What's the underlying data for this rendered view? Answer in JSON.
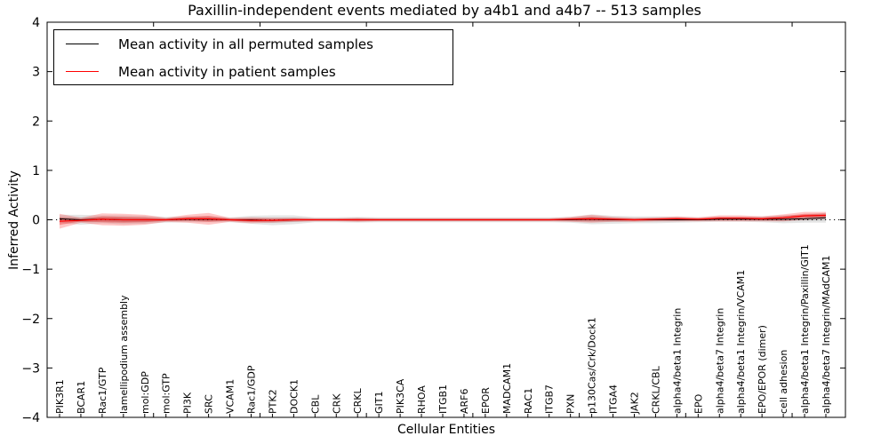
{
  "title": "Paxillin-independent events mediated by a4b1 and a4b7 -- 513 samples",
  "axes": {
    "xlabel": "Cellular Entities",
    "ylabel": "Inferred Activity",
    "ytick_labels": [
      "4",
      "3",
      "2",
      "1",
      "0",
      "−1",
      "−2",
      "−3",
      "−4"
    ],
    "ytick_values": [
      4,
      3,
      2,
      1,
      0,
      -1,
      -2,
      -3,
      -4
    ]
  },
  "legend": {
    "entries": [
      {
        "label": "Mean activity in all permuted samples",
        "color": "#000000"
      },
      {
        "label": "Mean activity in patient samples",
        "color": "#ff0000"
      }
    ]
  },
  "colors": {
    "permuted_line": "#000000",
    "patient_line": "#ff0000",
    "permuted_band": "rgba(0,0,0,0.10)",
    "permuted_band_inner": "rgba(0,0,0,0.13)",
    "patient_band": "rgba(255,0,0,0.22)",
    "patient_band_inner": "rgba(230,0,0,0.30)",
    "zero_line": "#000000",
    "axis": "#000000"
  },
  "chart_data": {
    "type": "line",
    "title": "Paxillin-independent events mediated by a4b1 and a4b7 -- 513 samples",
    "xlabel": "Cellular Entities",
    "ylabel": "Inferred Activity",
    "ylim": [
      -4,
      4
    ],
    "grid": false,
    "legend_position": "upper left",
    "zero_reference_line": "dotted",
    "categories": [
      "PIK3R1",
      "BCAR1",
      "Rac1/GTP",
      "lamellipodium assembly",
      "mol:GDP",
      "mol:GTP",
      "PI3K",
      "SRC",
      "VCAM1",
      "Rac1/GDP",
      "PTK2",
      "DOCK1",
      "CBL",
      "CRK",
      "CRKL",
      "GIT1",
      "PIK3CA",
      "RHOA",
      "ITGB1",
      "ARF6",
      "EPOR",
      "MADCAM1",
      "RAC1",
      "ITGB7",
      "PXN",
      "p130Cas/Crk/Dock1",
      "ITGA4",
      "JAK2",
      "CRKL/CBL",
      "alpha4/beta1 Integrin",
      "EPO",
      "alpha4/beta7 Integrin",
      "alpha4/beta1 Integrin/VCAM1",
      "EPO/EPOR (dimer)",
      "cell adhesion",
      "alpha4/beta1 Integrin/Paxillin/GIT1",
      "alpha4/beta7 Integrin/MAdCAM1"
    ],
    "series": [
      {
        "name": "Mean activity in all permuted samples",
        "color": "#000000",
        "values": [
          0.02,
          0.0,
          0.01,
          0.0,
          0.0,
          0.0,
          0.01,
          0.01,
          0.0,
          0.0,
          -0.01,
          0.0,
          0.0,
          0.0,
          0.0,
          0.0,
          0.0,
          0.0,
          0.0,
          0.0,
          0.0,
          0.0,
          0.0,
          0.0,
          0.0,
          0.01,
          0.0,
          0.0,
          0.0,
          0.0,
          0.0,
          0.01,
          0.01,
          0.01,
          0.01,
          0.02,
          0.04
        ],
        "band_halfwidth": [
          0.08,
          0.1,
          0.08,
          0.09,
          0.08,
          0.06,
          0.06,
          0.06,
          0.05,
          0.08,
          0.1,
          0.09,
          0.05,
          0.05,
          0.06,
          0.05,
          0.05,
          0.05,
          0.05,
          0.05,
          0.05,
          0.05,
          0.05,
          0.05,
          0.06,
          0.1,
          0.08,
          0.07,
          0.07,
          0.06,
          0.05,
          0.05,
          0.05,
          0.06,
          0.08,
          0.08,
          0.1
        ]
      },
      {
        "name": "Mean activity in patient samples",
        "color": "#ff0000",
        "values": [
          -0.03,
          -0.01,
          0.01,
          0.0,
          0.0,
          0.0,
          0.02,
          0.02,
          0.0,
          -0.01,
          -0.01,
          0.0,
          0.0,
          0.0,
          0.0,
          0.0,
          0.0,
          0.0,
          0.0,
          0.0,
          0.0,
          0.0,
          0.0,
          0.0,
          0.01,
          0.02,
          0.01,
          0.0,
          0.01,
          0.02,
          0.01,
          0.03,
          0.03,
          0.02,
          0.04,
          0.08,
          0.09
        ],
        "band_halfwidth": [
          0.15,
          0.05,
          0.12,
          0.12,
          0.1,
          0.04,
          0.08,
          0.12,
          0.04,
          0.06,
          0.05,
          0.04,
          0.03,
          0.03,
          0.04,
          0.03,
          0.03,
          0.03,
          0.03,
          0.03,
          0.03,
          0.03,
          0.03,
          0.03,
          0.05,
          0.08,
          0.05,
          0.04,
          0.04,
          0.05,
          0.04,
          0.06,
          0.06,
          0.05,
          0.07,
          0.08,
          0.07
        ]
      }
    ]
  }
}
